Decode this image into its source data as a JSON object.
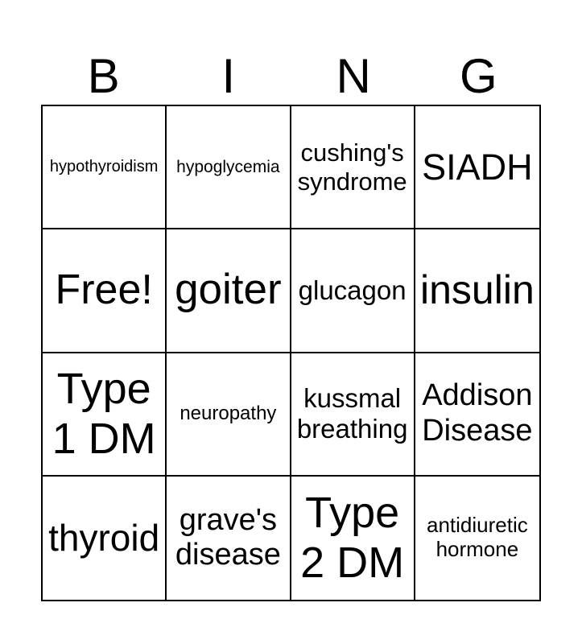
{
  "card": {
    "title_letters": [
      "B",
      "I",
      "N",
      "G"
    ],
    "free_space_label": "Free!",
    "colors": {
      "text": "#000000",
      "background": "#ffffff",
      "grid_line": "#000000"
    },
    "rows": [
      {
        "cells": [
          {
            "label": "hypothyroidism"
          },
          {
            "label": "hypoglycemia"
          },
          {
            "label": "cushing's syndrome"
          },
          {
            "label": "SIADH"
          }
        ]
      },
      {
        "cells": [
          {
            "label": "Free!"
          },
          {
            "label": "goiter"
          },
          {
            "label": "glucagon"
          },
          {
            "label": "insulin"
          }
        ]
      },
      {
        "cells": [
          {
            "label": "Type 1 DM"
          },
          {
            "label": "neuropathy"
          },
          {
            "label": "kussmal breathing"
          },
          {
            "label": "Addison Disease"
          }
        ]
      },
      {
        "cells": [
          {
            "label": "thyroid"
          },
          {
            "label": "grave's disease"
          },
          {
            "label": "Type 2 DM"
          },
          {
            "label": "antidiuretic hormone"
          }
        ]
      }
    ]
  }
}
